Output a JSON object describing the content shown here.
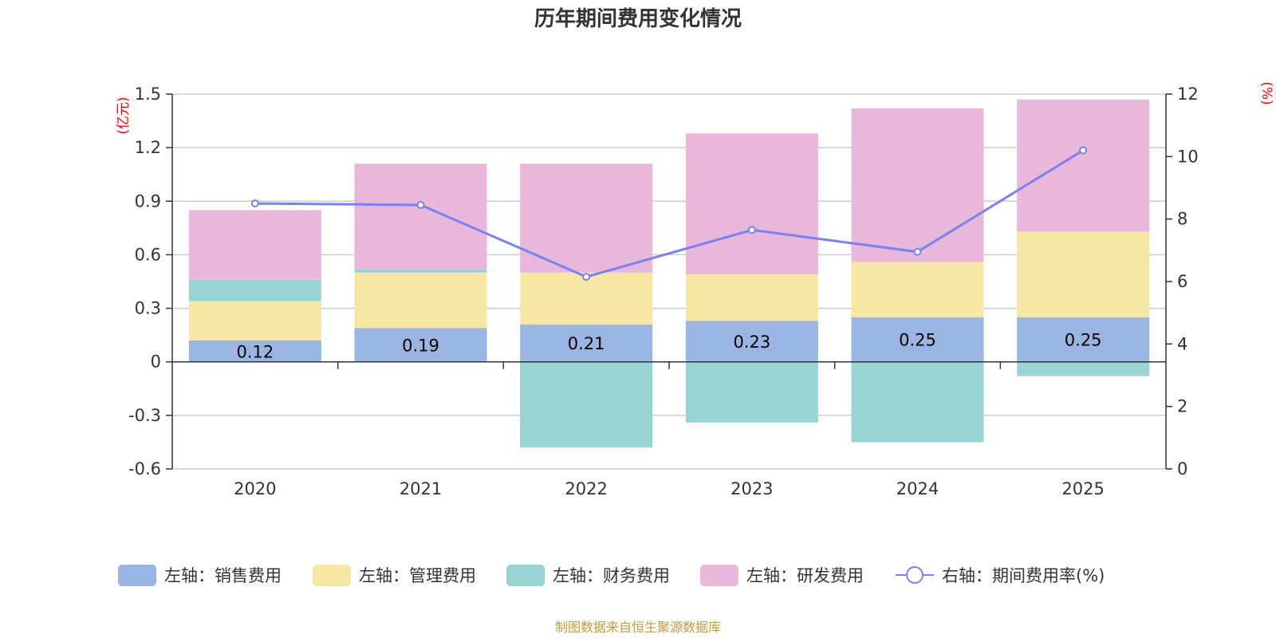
{
  "chart_data": {
    "type": "bar",
    "title": "历年期间费用变化情况",
    "left_unit": "(亿元)",
    "right_unit": "(%)",
    "categories": [
      "2020",
      "2021",
      "2022",
      "2023",
      "2024",
      "2025"
    ],
    "left_axis": {
      "ylim": [
        -0.6,
        1.5
      ],
      "ticks": [
        {
          "value": 1.5,
          "label": "1.5"
        },
        {
          "value": 1.2,
          "label": "1.2"
        },
        {
          "value": 0.9,
          "label": "0.9"
        },
        {
          "value": 0.6,
          "label": "0.6"
        },
        {
          "value": 0.3,
          "label": "0.3"
        },
        {
          "value": 0,
          "label": "0"
        },
        {
          "value": -0.3,
          "label": "-0.3"
        },
        {
          "value": -0.6,
          "label": "-0.6"
        }
      ]
    },
    "right_axis": {
      "ylim": [
        0,
        12
      ],
      "ticks": [
        {
          "value": 12,
          "label": "12"
        },
        {
          "value": 10,
          "label": "10"
        },
        {
          "value": 8,
          "label": "8"
        },
        {
          "value": 6,
          "label": "6"
        },
        {
          "value": 4,
          "label": "4"
        },
        {
          "value": 2,
          "label": "2"
        },
        {
          "value": 0,
          "label": "0"
        }
      ]
    },
    "grid": true,
    "stacked": true,
    "series": [
      {
        "name": "左轴：销售费用",
        "type": "bar",
        "axis": "left",
        "color": "#9ab5e2",
        "values": [
          0.12,
          0.19,
          0.21,
          0.23,
          0.25,
          0.25
        ],
        "labels": [
          "0.12",
          "0.19",
          "0.21",
          "0.23",
          "0.25",
          "0.25"
        ]
      },
      {
        "name": "左轴：管理费用",
        "type": "bar",
        "axis": "left",
        "color": "#f7e6a6",
        "values": [
          0.22,
          0.31,
          0.29,
          0.26,
          0.31,
          0.48
        ]
      },
      {
        "name": "左轴：财务费用",
        "type": "bar",
        "axis": "left",
        "color": "#98d4d4",
        "values": [
          0.12,
          0.02,
          -0.48,
          -0.34,
          -0.45,
          -0.08
        ]
      },
      {
        "name": "左轴：研发费用",
        "type": "bar",
        "axis": "left",
        "color": "#e7b8d9",
        "values": [
          0.39,
          0.59,
          0.61,
          0.79,
          0.86,
          0.74
        ]
      },
      {
        "name": "右轴：期间费用率(%)",
        "type": "line",
        "axis": "right",
        "color": "#7b7ff0",
        "values": [
          8.5,
          8.45,
          6.15,
          7.65,
          6.95,
          10.2
        ]
      }
    ],
    "legend_position": "bottom",
    "source": "制图数据来自恒生聚源数据库"
  }
}
